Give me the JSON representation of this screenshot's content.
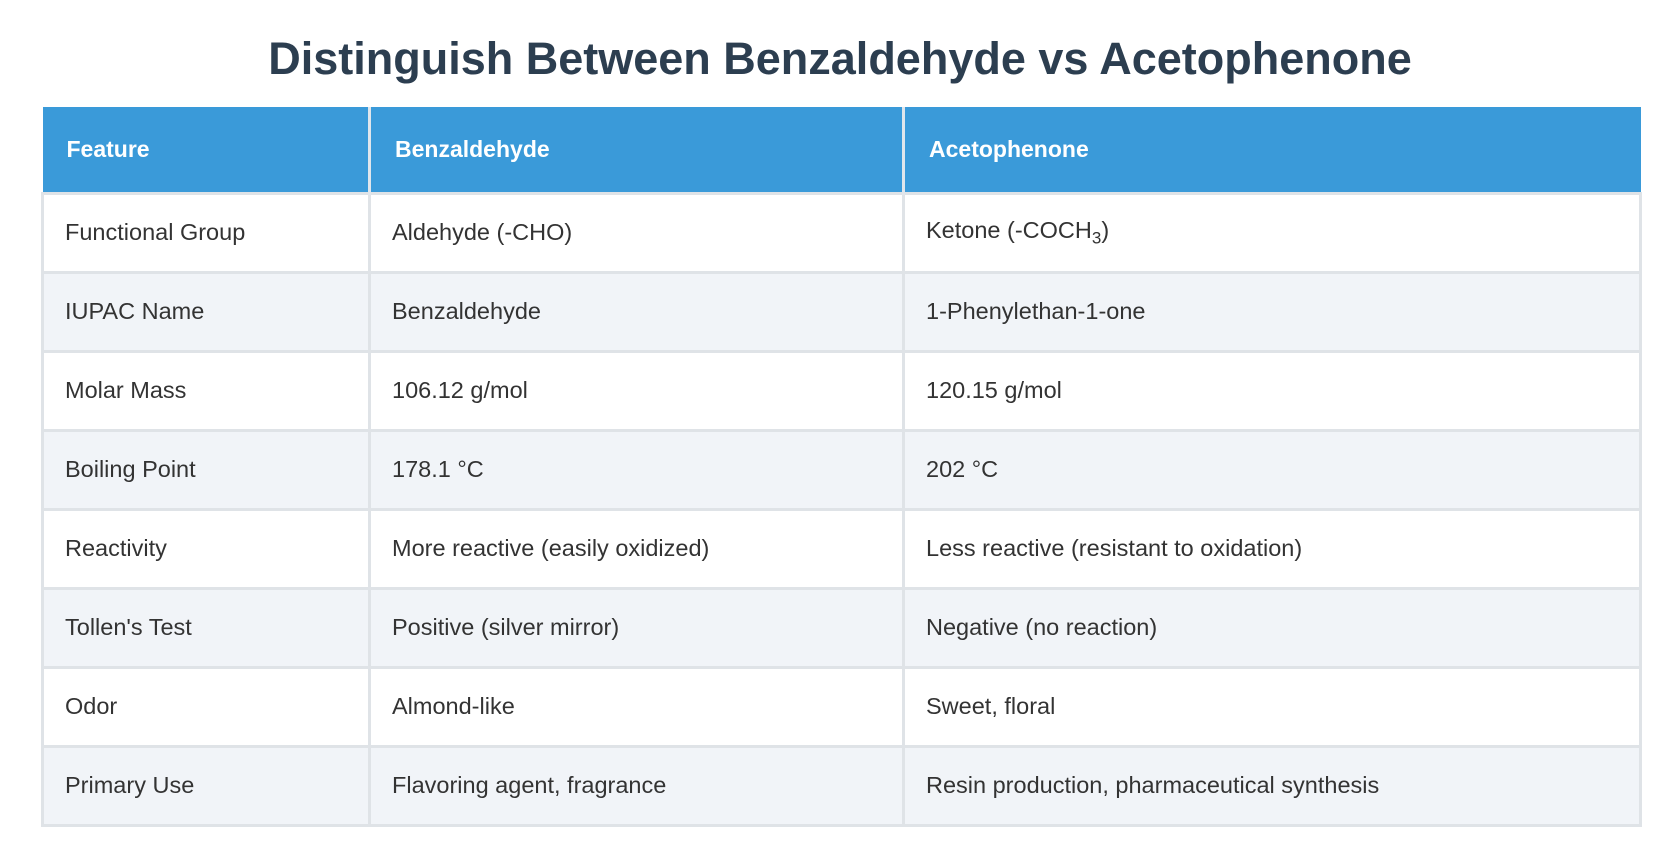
{
  "header": {
    "title": "Distinguish Between Benzaldehyde vs Acetophenone"
  },
  "table": {
    "columns": [
      "Feature",
      "Benzaldehyde",
      "Acetophenone"
    ],
    "rows": [
      [
        "Functional Group",
        "Aldehyde (-CHO)",
        {
          "text": "Ketone (-COCH",
          "sub": "3",
          "tail": ")"
        }
      ],
      [
        "IUPAC Name",
        "Benzaldehyde",
        "1-Phenylethan-1-one"
      ],
      [
        "Molar Mass",
        "106.12 g/mol",
        "120.15 g/mol"
      ],
      [
        "Boiling Point",
        "178.1 °C",
        "202 °C"
      ],
      [
        "Reactivity",
        "More reactive (easily oxidized)",
        "Less reactive (resistant to oxidation)"
      ],
      [
        "Tollen's Test",
        "Positive (silver mirror)",
        "Negative (no reaction)"
      ],
      [
        "Odor",
        "Almond-like",
        "Sweet, floral"
      ],
      [
        "Primary Use",
        "Flavoring agent, fragrance",
        "Resin production, pharmaceutical synthesis"
      ]
    ]
  }
}
